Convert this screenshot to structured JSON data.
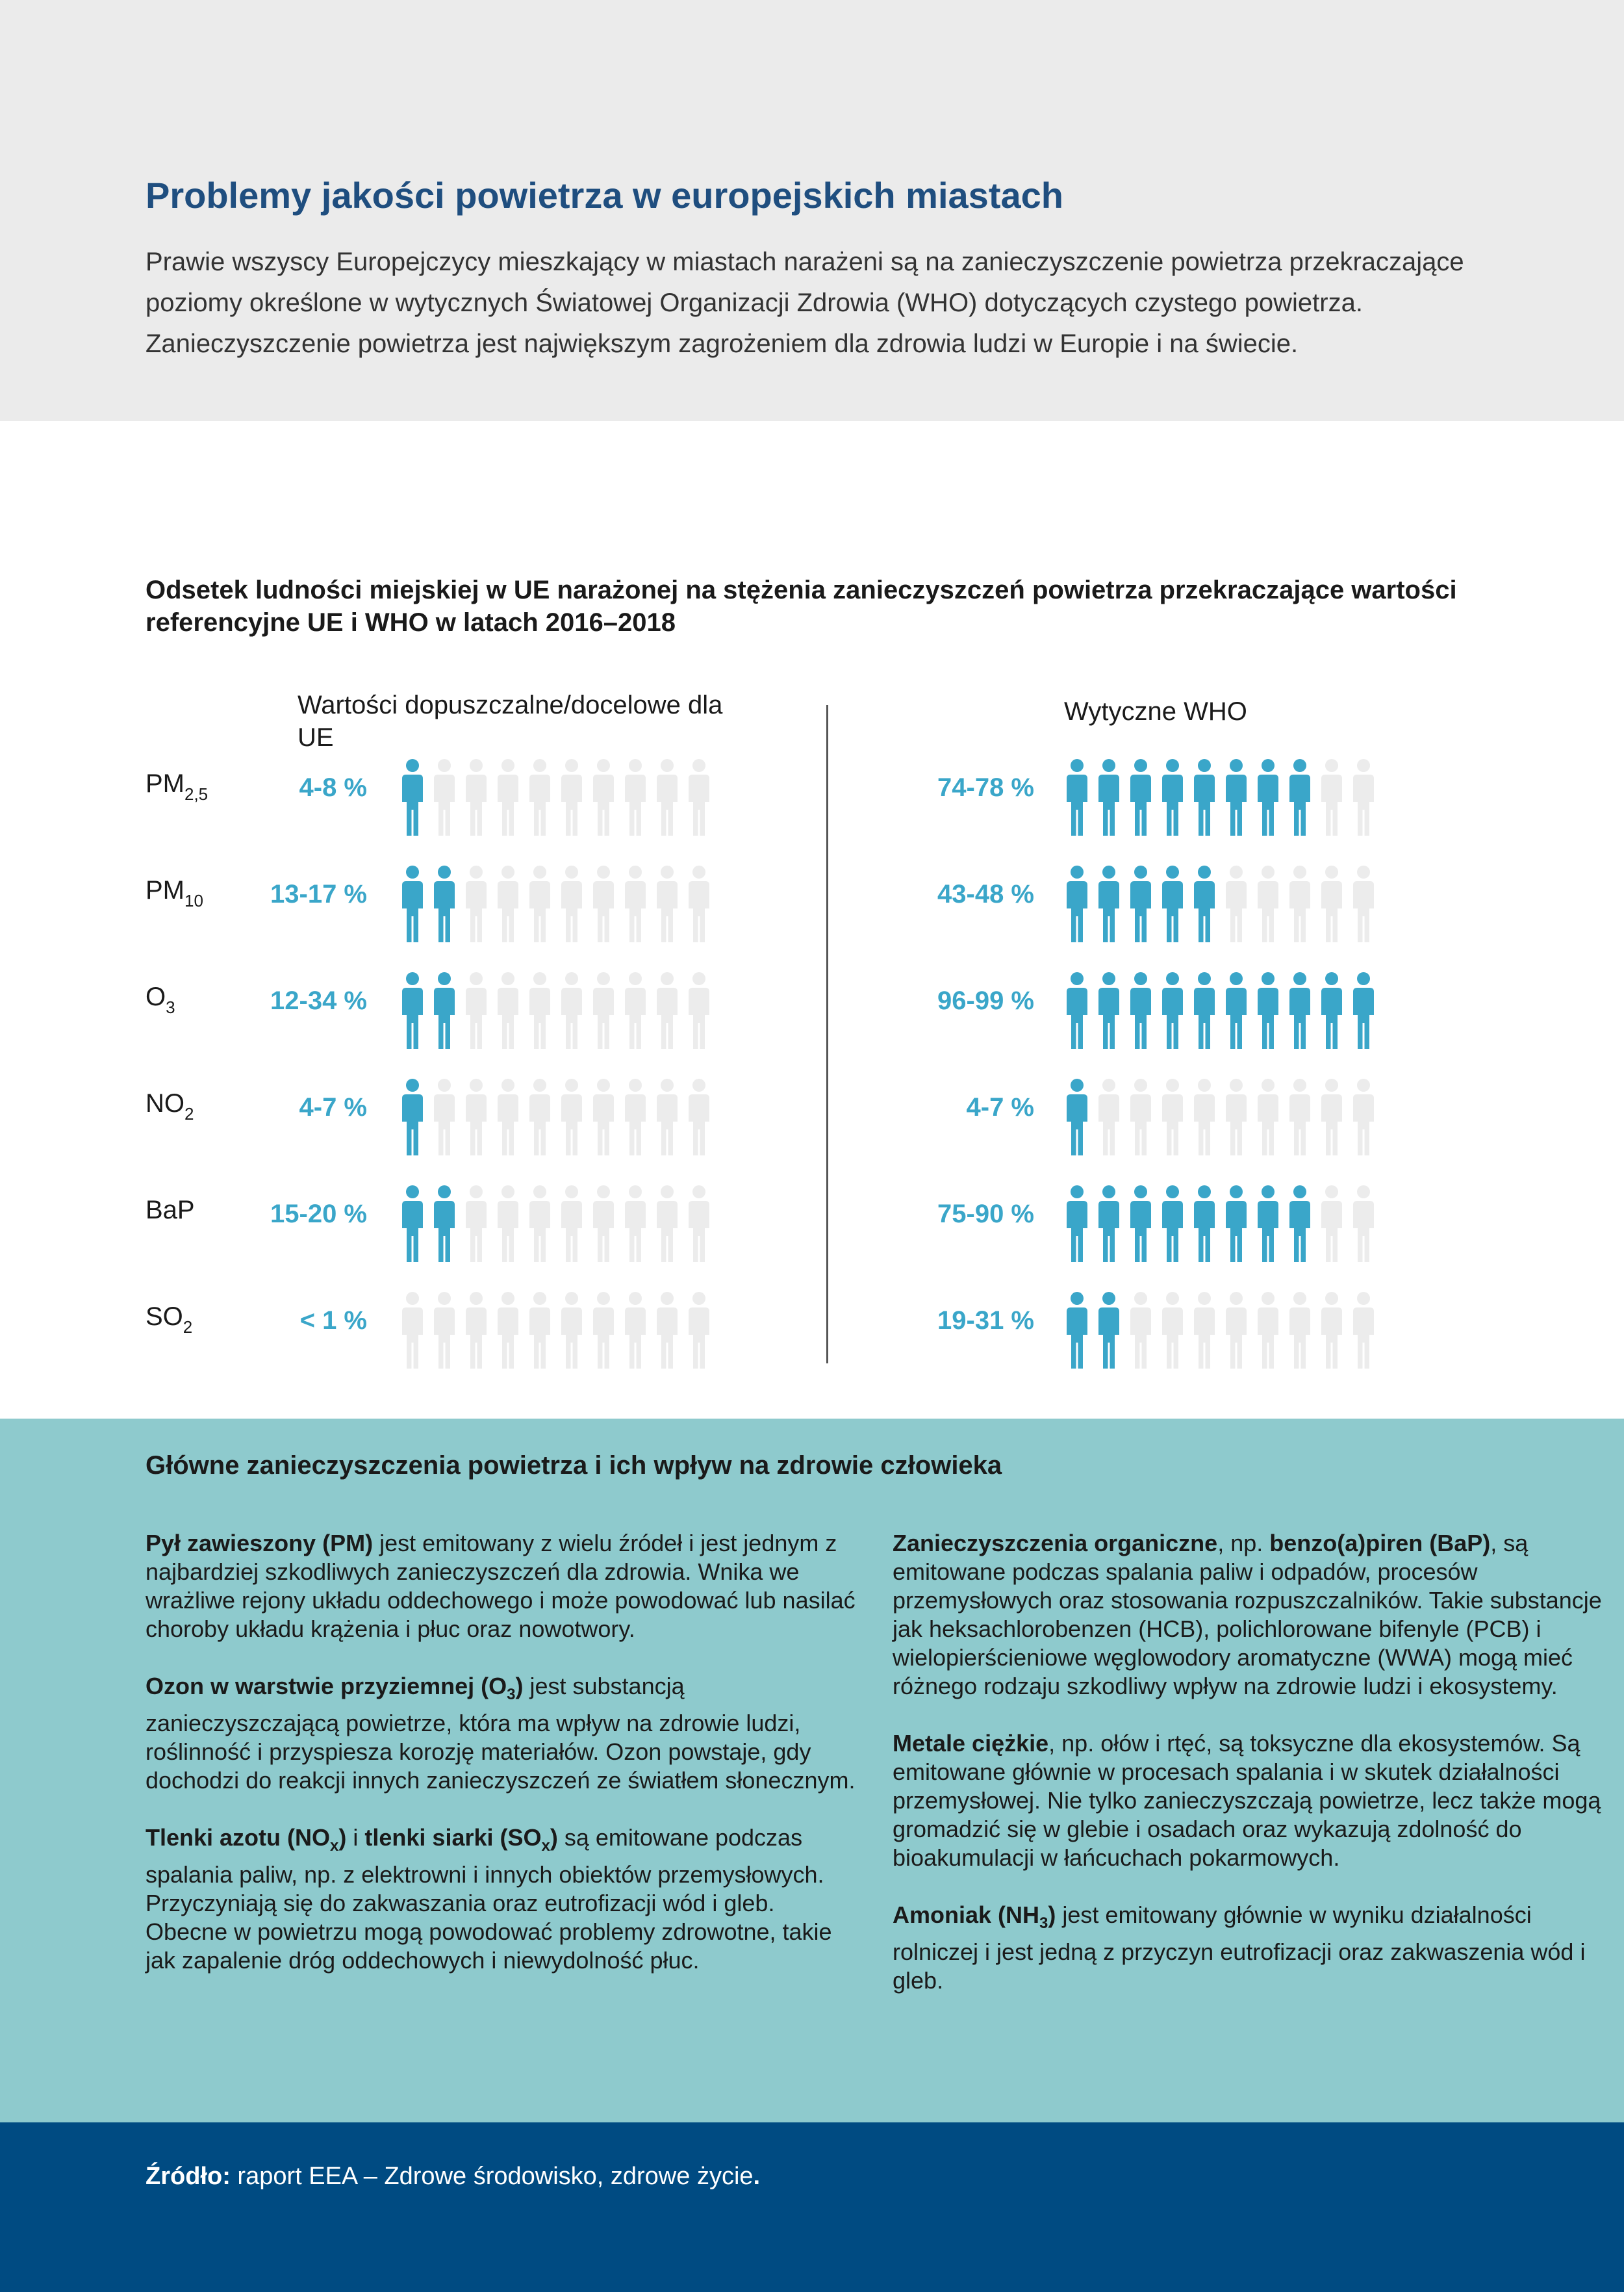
{
  "header": {
    "title": "Problemy jakości powietrza w europejskich miastach",
    "intro": "Prawie wszyscy Europejczycy mieszkający w miastach narażeni są na zanieczyszczenie powietrza przekraczające poziomy określone w wytycznych Światowej Organizacji Zdrowia (WHO) dotyczących czystego powietrza. Zanieczyszczenie powietrza jest największym zagrożeniem dla zdrowia ludzi  w Europie i na świecie."
  },
  "chart_data": {
    "type": "table",
    "title": "Odsetek ludności miejskiej w UE narażonej na stężenia zanieczyszczeń powietrza przekraczające wartości referencyjne UE i WHO w latach 2016–2018",
    "columns": [
      "Wartości dopuszczalne/docelowe dla UE",
      "Wytyczne WHO"
    ],
    "icons_per_row": 10,
    "rows": [
      {
        "name": "PM",
        "sub": "2,5",
        "ue_label": "4-8 %",
        "ue_filled": 1,
        "who_label": "74-78 %",
        "who_filled": 8
      },
      {
        "name": "PM",
        "sub": "10",
        "ue_label": "13-17 %",
        "ue_filled": 2,
        "who_label": "43-48 %",
        "who_filled": 5
      },
      {
        "name": "O",
        "sub": "3",
        "ue_label": "12-34 %",
        "ue_filled": 2,
        "who_label": "96-99 %",
        "who_filled": 10
      },
      {
        "name": "NO",
        "sub": "2",
        "ue_label": "4-7 %",
        "ue_filled": 1,
        "who_label": "4-7 %",
        "who_filled": 1
      },
      {
        "name": "BaP",
        "sub": "",
        "ue_label": "15-20 %",
        "ue_filled": 2,
        "who_label": "75-90 %",
        "who_filled": 8
      },
      {
        "name": "SO",
        "sub": "2",
        "ue_label": "< 1 %",
        "ue_filled": 0,
        "who_label": "19-31 %",
        "who_filled": 2
      }
    ],
    "colors": {
      "filled": "#3aa6c9",
      "empty": "#ececec"
    }
  },
  "impacts": {
    "title": "Główne zanieczyszczenia powietrza i ich wpływ na zdrowie człowieka",
    "left": [
      {
        "b1": "Pył zawieszony (PM)",
        "s1": "",
        "b2": "",
        "s2": "",
        "t": " jest emitowany z wielu źródeł i jest jednym z najbardziej szkodliwych zanieczyszczeń dla zdrowia. Wnika we wrażliwe rejony układu oddechowego i może powodować lub nasilać choroby układu krążenia i płuc oraz nowotwory."
      },
      {
        "b1": "Ozon w warstwie przyziemnej (O",
        "s1": "3",
        "b1end": ")",
        "t": " jest substancją zanieczyszczającą powietrze, która ma wpływ na zdrowie ludzi, roślinność i przyspiesza korozję materiałów. Ozon powstaje, gdy dochodzi do reakcji innych zanieczyszczeń ze światłem słonecznym."
      },
      {
        "b1": "Tlenki azotu (NO",
        "s1": "x",
        "b1end": ")",
        "mid": " i ",
        "b2": "tlenki siarki (SO",
        "s2": "x",
        "b2end": ")",
        "t": " są emitowane podczas spalania paliw, np. z elektrowni i innych obiektów przemysłowych. Przyczyniają się do zakwaszania oraz eutrofizacji wód i gleb. Obecne w powietrzu mogą powodować problemy zdrowotne, takie jak zapalenie dróg oddechowych i niewydolność płuc."
      }
    ],
    "right": [
      {
        "b1": "Zanieczyszczenia organiczne",
        "mid": ", np. ",
        "b2": "benzo(a)piren (BaP)",
        "t": ", są emitowane podczas spalania paliw i odpadów, procesów przemysłowych oraz stosowania rozpuszczalników. Takie substancje jak heksachlorobenzen (HCB), polichlorowane bifenyle (PCB) i wielopierścieniowe węglowodory aromatyczne (WWA) mogą mieć różnego rodzaju szkodliwy wpływ na zdrowie ludzi i ekosystemy."
      },
      {
        "b1": "Metale ciężkie",
        "t": ", np. ołów i rtęć, są toksyczne dla ekosystemów. Są emitowane głównie w procesach spalania i w skutek działalności przemysłowej. Nie tylko zanieczyszczają powietrze, lecz także mogą gromadzić się w glebie i osadach oraz wykazują zdolność do bioakumulacji w łańcuchach pokarmowych."
      },
      {
        "b1": "Amoniak (NH",
        "s1": "3",
        "b1end": ")",
        "t": " jest emitowany głównie w wyniku działalności rolniczej i jest jedną z przyczyn eutrofizacji oraz zakwaszenia wód i gleb."
      }
    ]
  },
  "footer": {
    "label": "Źródło:",
    "text": " raport EEA – Zdrowe środowisko, zdrowe życie",
    "dot": "."
  }
}
